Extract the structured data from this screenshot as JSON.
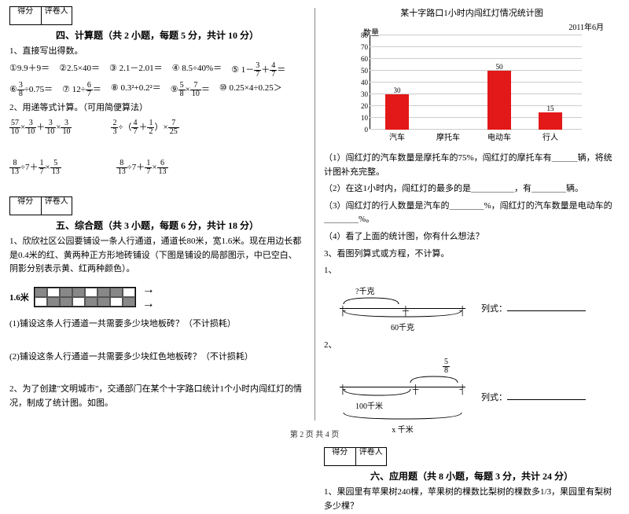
{
  "score_header": {
    "col1": "得分",
    "col2": "评卷人"
  },
  "section4": {
    "title": "四、计算题（共 2 小题，每题 5 分，共计 10 分）",
    "q1": "1、直接写出得数。",
    "items": {
      "i1": "①9.9＋9＝",
      "i2": "②2.5×40＝",
      "i3": "③ 2.1－2.01＝",
      "i4": "④ 8.5÷40%＝",
      "i6": "⑥",
      "i6b": "÷0.75＝",
      "i7": "⑦ 12÷",
      "i7b": "＝",
      "i8": "⑧ 0.3²+0.2²＝",
      "i10": "⑩ 0.25×4÷0.25＞"
    },
    "i5a": "⑤ 1－",
    "i5b": "＋",
    "i5c": "＝",
    "i9a": "⑨",
    "i9b": "×",
    "i9c": "＝",
    "q2": "2、用递等式计算。（可用简便算法）",
    "expr1a": "×",
    "expr1b": "＋",
    "expr1c": "×",
    "expr2a": "÷（",
    "expr2b": "＋",
    "expr2c": "）×",
    "expr3a": "÷7＋",
    "expr3b": "×",
    "expr4a": "÷7＋",
    "expr4b": "×"
  },
  "fracs": {
    "f3_7": {
      "n": "3",
      "d": "7"
    },
    "f4_7": {
      "n": "4",
      "d": "7"
    },
    "f3_8": {
      "n": "3",
      "d": "8"
    },
    "f6_7": {
      "n": "6",
      "d": "7"
    },
    "f5_8": {
      "n": "5",
      "d": "8"
    },
    "f7_10": {
      "n": "7",
      "d": "10"
    },
    "f57_10": {
      "n": "57",
      "d": "10"
    },
    "f3_10": {
      "n": "3",
      "d": "10"
    },
    "f2_3": {
      "n": "2",
      "d": "3"
    },
    "f1_2": {
      "n": "1",
      "d": "2"
    },
    "f7_25": {
      "n": "7",
      "d": "25"
    },
    "f8_13": {
      "n": "8",
      "d": "13"
    },
    "f1_7": {
      "n": "1",
      "d": "7"
    },
    "f5_13": {
      "n": "5",
      "d": "13"
    },
    "f6_13": {
      "n": "6",
      "d": "13"
    }
  },
  "section5": {
    "title": "五、综合题（共 3 小题，每题 6 分，共计 18 分）",
    "q1": "1、欣欣社区公园要铺设一条人行通道，通道长80米，宽1.6米。现在用边长都是0.4米的红、黄两种正方形地砖铺设（下图是铺设的局部图示，中已空白、阴影分别表示黄、红两种颜色）。",
    "width_label": "1.6米",
    "sq1": "(1)铺设这条人行通道一共需要多少块地板砖？（不计损耗）",
    "sq2": "(2)铺设这条人行通道一共需要多少块红色地板砖？（不计损耗）",
    "q2": "2、为了创建\"文明城市\"，交通部门在某个十字路口统计1个小时内闯红灯的情况，制成了统计图。如图。"
  },
  "chart": {
    "title": "某十字路口1小时内闯红灯情况统计图",
    "date": "2011年6月",
    "ytitle": "数量",
    "yticks": [
      "0",
      "10",
      "20",
      "30",
      "40",
      "50",
      "60",
      "70",
      "80"
    ],
    "bars": [
      {
        "label": "汽车",
        "value": 30,
        "color": "#e31818"
      },
      {
        "label": "摩托车",
        "value": null,
        "color": "#e31818"
      },
      {
        "label": "电动车",
        "value": 50,
        "color": "#e31818"
      },
      {
        "label": "行人",
        "value": 15,
        "color": "#e31818"
      }
    ]
  },
  "chart_q": {
    "l1": "（1）闯红灯的汽车数量是摩托车的75%，闯红灯的摩托车有＿＿＿辆，将统计图补充完整。",
    "l2": "（2）在这1小时内，闯红灯的最多的是＿＿＿＿＿，有＿＿＿＿辆。",
    "l3": "（3）闯红灯的行人数量是汽车的＿＿＿＿%，闯红灯的汽车数量是电动车的＿＿＿＿%。",
    "l4": "（4）看了上面的统计图，你有什么想法？"
  },
  "q3": {
    "title": "3、看图列算式或方程，不计算。",
    "d1_top": "?千克",
    "d1_bot": "60千克",
    "d2_top_frac": {
      "n": "5",
      "d": "8"
    },
    "d2_mid": "100千米",
    "d2_bot": "x 千米",
    "expr_label": "列式：",
    "num1": "1、",
    "num2": "2、"
  },
  "section6": {
    "title": "六、应用题（共 8 小题，每题 3 分，共计 24 分）",
    "q1": "1、果园里有苹果树240棵，苹果树的棵数比梨树的棵数多1/3，果园里有梨树多少棵？"
  },
  "footer": "第 2 页 共 4 页"
}
